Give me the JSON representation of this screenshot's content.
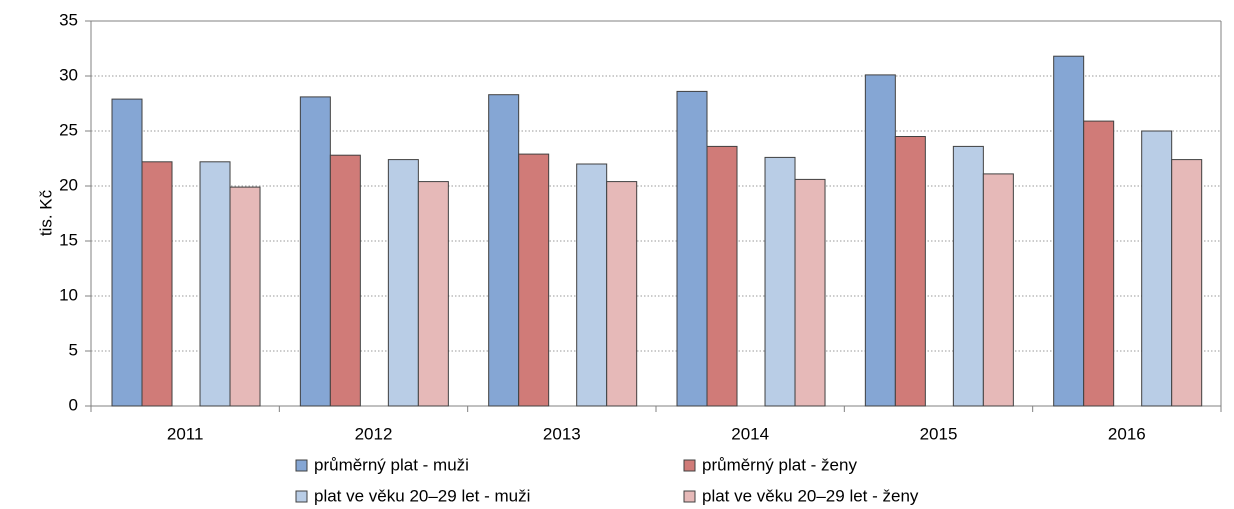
{
  "chart_data": {
    "type": "bar",
    "y_label": "tis. Kč",
    "categories": [
      "2011",
      "2012",
      "2013",
      "2014",
      "2015",
      "2016"
    ],
    "series": [
      {
        "name": "průměrný plat - muži",
        "color": "#85a6d4",
        "values": [
          27.9,
          28.1,
          28.3,
          28.6,
          30.1,
          31.8
        ]
      },
      {
        "name": "průměrný plat - ženy",
        "color": "#d07b78",
        "values": [
          22.2,
          22.8,
          22.9,
          23.6,
          24.5,
          25.9
        ]
      },
      {
        "name": "plat ve věku 20–29 let - muži",
        "color": "#b9cde6",
        "values": [
          22.2,
          22.4,
          22.0,
          22.6,
          23.6,
          25.0
        ]
      },
      {
        "name": "plat ve věku 20–29 let - ženy",
        "color": "#e6b9b8",
        "values": [
          19.9,
          20.4,
          20.4,
          20.6,
          21.1,
          22.4
        ]
      }
    ],
    "ylim": [
      0,
      35
    ],
    "yticks": [
      0,
      5,
      10,
      15,
      20,
      25,
      30,
      35
    ],
    "grid": true
  }
}
